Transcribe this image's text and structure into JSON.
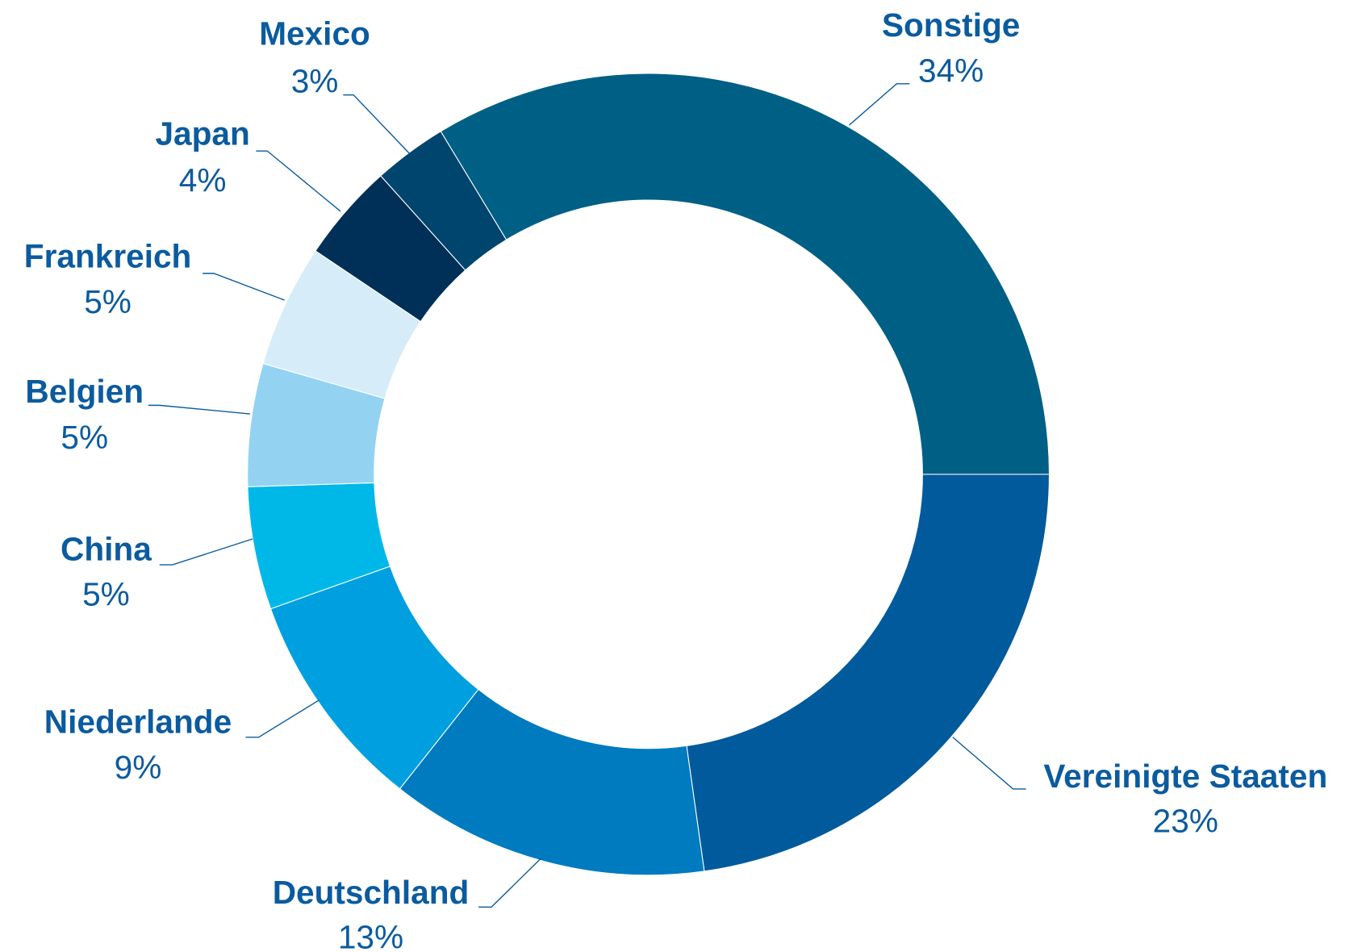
{
  "chart_data": {
    "type": "donut",
    "categories": [
      "Vereinigte Staaten",
      "Deutschland",
      "Niederlande",
      "China",
      "Belgien",
      "Frankreich",
      "Japan",
      "Mexico",
      "Sonstige"
    ],
    "values": [
      23,
      13,
      9,
      5,
      5,
      5,
      4,
      3,
      34
    ],
    "value_labels": [
      "23%",
      "13%",
      "9%",
      "5%",
      "5%",
      "5%",
      "4%",
      "3%",
      "34%"
    ],
    "colors": [
      "#005a9c",
      "#007bbf",
      "#009fe0",
      "#00b8e8",
      "#93d3f1",
      "#d6ecf9",
      "#003057",
      "#00456d",
      "#005f85"
    ]
  }
}
